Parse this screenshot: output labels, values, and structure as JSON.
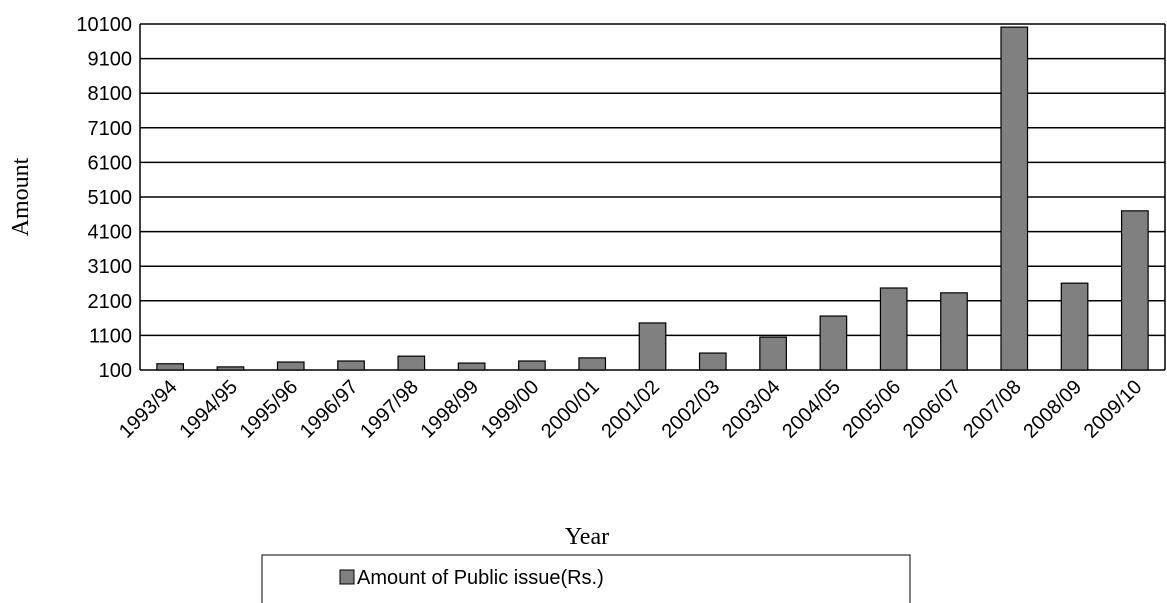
{
  "chart_data": {
    "type": "bar",
    "x_label": "Year",
    "y_label": "Amount",
    "categories": [
      "1993/94",
      "1994/95",
      "1995/96",
      "1996/97",
      "1997/98",
      "1998/99",
      "1999/00",
      "2000/01",
      "2001/02",
      "2002/03",
      "2003/04",
      "2004/05",
      "2005/06",
      "2006/07",
      "2007/08",
      "2008/09",
      "2009/10"
    ],
    "series": [
      {
        "name": "Amount of Public issue(Rs.)",
        "color": "#808080",
        "values": [
          280,
          190,
          330,
          360,
          500,
          300,
          360,
          450,
          1460,
          590,
          1050,
          1660,
          2470,
          2330,
          10010,
          2610,
          4700
        ]
      }
    ],
    "ylim": [
      100,
      10100
    ],
    "yticks": [
      100,
      1100,
      2100,
      3100,
      4100,
      5100,
      6100,
      7100,
      8100,
      9100,
      10100
    ],
    "grid": true,
    "legend": "bottom"
  }
}
